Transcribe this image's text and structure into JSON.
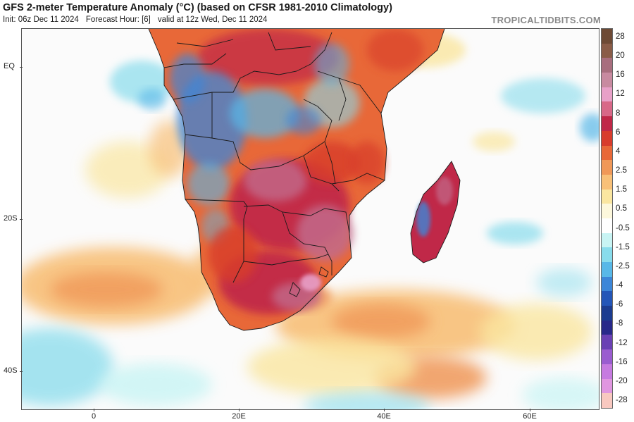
{
  "header": {
    "title": "GFS 2-meter Temperature Anomaly (°C) (based on CFSR 1981-2010 Climatology)",
    "init": "Init: 06z Dec 11 2024",
    "forecast_hour": "Forecast Hour: [6]",
    "valid": "valid at 12z Wed, Dec 11 2024",
    "brand": "TROPICALTIDBITS.COM"
  },
  "axes": {
    "lat_labels": [
      "EQ",
      "20S",
      "40S"
    ],
    "lon_labels": [
      "0",
      "20E",
      "40E",
      "60E"
    ]
  },
  "colorbar": {
    "labels": [
      "28",
      "20",
      "16",
      "12",
      "8",
      "6",
      "4",
      "2.5",
      "1.5",
      "0.5",
      "-0.5",
      "-1.5",
      "-2.5",
      "-4",
      "-6",
      "-8",
      "-12",
      "-16",
      "-20",
      "-28"
    ],
    "colors": [
      "#6e4a35",
      "#8a5c48",
      "#a86e7e",
      "#c88aa0",
      "#e8a0c8",
      "#d86888",
      "#c02848",
      "#d83c2c",
      "#e86838",
      "#f09858",
      "#f8c078",
      "#fae6a0",
      "#fdf8dc",
      "#ffffff",
      "#c8f4f4",
      "#88dcec",
      "#58b8e8",
      "#3c86d8",
      "#2456b8",
      "#1c3c90",
      "#28288a",
      "#6a40b4",
      "#9a5cd0",
      "#c67ae0",
      "#e096e0",
      "#f8c8c0"
    ]
  },
  "map": {
    "region": "Southern Africa and surrounding oceans",
    "palette": {
      "ocean_neutral": "#fbfbfb",
      "warm_light": "#fae6a0",
      "warm_mid": "#f09858",
      "warm_strong": "#d83c2c",
      "hot": "#c02848",
      "very_hot": "#c26a8a",
      "cool": "#58b8e8",
      "cold": "#2456b8",
      "border": "#1a1a1a"
    }
  }
}
